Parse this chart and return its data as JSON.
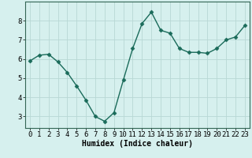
{
  "x": [
    0,
    1,
    2,
    3,
    4,
    5,
    6,
    7,
    8,
    9,
    10,
    11,
    12,
    13,
    14,
    15,
    16,
    17,
    18,
    19,
    20,
    21,
    22,
    23
  ],
  "y": [
    5.9,
    6.2,
    6.25,
    5.85,
    5.3,
    4.6,
    3.85,
    3.0,
    2.75,
    3.2,
    4.9,
    6.55,
    7.85,
    8.45,
    7.5,
    7.35,
    6.55,
    6.35,
    6.35,
    6.3,
    6.55,
    7.0,
    7.15,
    7.75
  ],
  "line_color": "#1a6b5a",
  "marker": "D",
  "markersize": 2.5,
  "linewidth": 1.0,
  "background_color": "#d6f0ee",
  "grid_color": "#b8d8d4",
  "xlabel": "Humidex (Indice chaleur)",
  "xlabel_fontsize": 7,
  "tick_fontsize": 6.5,
  "ylim": [
    2.4,
    9.0
  ],
  "xlim": [
    -0.5,
    23.5
  ],
  "yticks": [
    3,
    4,
    5,
    6,
    7,
    8
  ],
  "xticks": [
    0,
    1,
    2,
    3,
    4,
    5,
    6,
    7,
    8,
    9,
    10,
    11,
    12,
    13,
    14,
    15,
    16,
    17,
    18,
    19,
    20,
    21,
    22,
    23
  ]
}
